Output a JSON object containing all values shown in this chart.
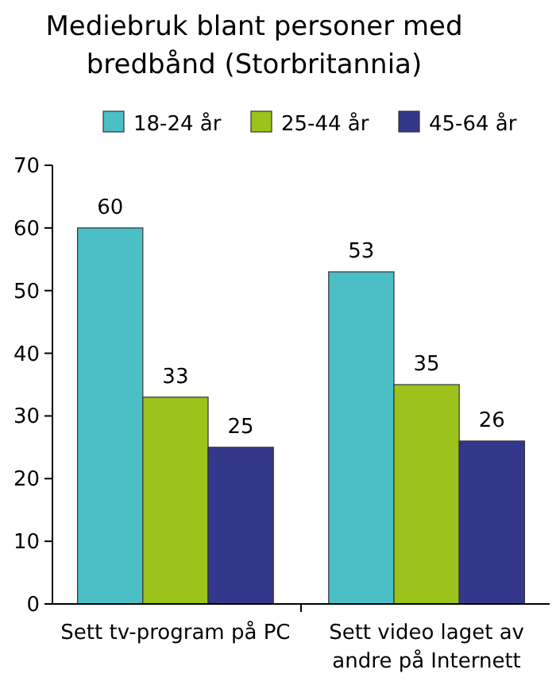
{
  "chart_data": {
    "type": "bar",
    "title": "Mediebruk blant personer med bredbånd (Storbritannia)",
    "categories": [
      "Sett tv-program på PC",
      "Sett video laget av andre på Internett"
    ],
    "series": [
      {
        "name": "18-24 år",
        "color": "#4cbfc6",
        "values": [
          60,
          53
        ]
      },
      {
        "name": "25-44 år",
        "color": "#9bc31c",
        "values": [
          33,
          35
        ]
      },
      {
        "name": "45-64 år",
        "color": "#34388c",
        "values": [
          25,
          26
        ]
      }
    ],
    "ylim": [
      0,
      70
    ],
    "yticks": [
      0,
      10,
      20,
      30,
      40,
      50,
      60,
      70
    ],
    "data_labels": true,
    "legend": "top"
  }
}
